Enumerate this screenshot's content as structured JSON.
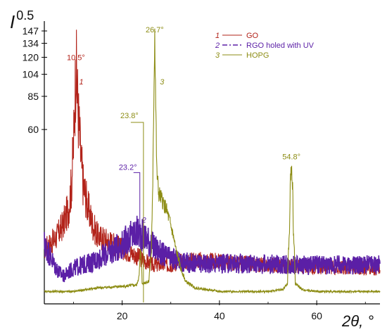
{
  "chart_data": {
    "type": "line",
    "xlabel": "2θ, °",
    "ylabel": "I",
    "ylabel_sup": "0.5",
    "xlim": [
      4,
      73
    ],
    "ylim_sqrt": [
      0,
      147
    ],
    "x_ticks": [
      20,
      40,
      60
    ],
    "x_tick_labels": [
      "20",
      "40",
      "60"
    ],
    "y_ticks": [
      60,
      85,
      104,
      120,
      134,
      147
    ],
    "y_tick_labels": [
      "60",
      "85",
      "104",
      "120",
      "134",
      "147"
    ],
    "legend_position": "top-right",
    "series": [
      {
        "name": "GO",
        "index_label": "1",
        "color": "#b2231a",
        "dash": "solid",
        "points": [
          [
            4,
            6
          ],
          [
            6,
            8
          ],
          [
            7,
            10
          ],
          [
            8,
            13
          ],
          [
            9,
            18
          ],
          [
            9.6,
            28
          ],
          [
            10,
            50
          ],
          [
            10.3,
            85
          ],
          [
            10.5,
            112
          ],
          [
            10.7,
            96
          ],
          [
            11,
            70
          ],
          [
            11.5,
            42
          ],
          [
            12,
            28
          ],
          [
            13,
            18
          ],
          [
            14,
            12
          ],
          [
            15,
            9
          ],
          [
            17,
            8
          ],
          [
            20,
            6
          ],
          [
            22,
            5
          ],
          [
            24,
            4
          ],
          [
            26,
            3
          ],
          [
            28,
            3
          ],
          [
            30,
            3
          ],
          [
            32,
            3.5
          ],
          [
            35,
            3.8
          ],
          [
            40,
            3.5
          ],
          [
            45,
            3.2
          ],
          [
            50,
            3
          ],
          [
            55,
            2.8
          ],
          [
            60,
            2.7
          ],
          [
            65,
            2.6
          ],
          [
            70,
            2.5
          ],
          [
            73,
            2.5
          ]
        ]
      },
      {
        "name": "RGO holed with UV",
        "index_label": "2",
        "color": "#5b1fa6",
        "dash": "dashdot",
        "points": [
          [
            4,
            7
          ],
          [
            5,
            5
          ],
          [
            6,
            3
          ],
          [
            7,
            2
          ],
          [
            8,
            1.5
          ],
          [
            9,
            2
          ],
          [
            10,
            2.5
          ],
          [
            12,
            3
          ],
          [
            14,
            3.5
          ],
          [
            16,
            4.5
          ],
          [
            18,
            5.5
          ],
          [
            20,
            7
          ],
          [
            21,
            8.2
          ],
          [
            22,
            9.2
          ],
          [
            23,
            9.8
          ],
          [
            23.2,
            10
          ],
          [
            24,
            9.6
          ],
          [
            25,
            8.5
          ],
          [
            26,
            7
          ],
          [
            27,
            6
          ],
          [
            28,
            5
          ],
          [
            30,
            4
          ],
          [
            32,
            3.5
          ],
          [
            35,
            3.2
          ],
          [
            40,
            3.2
          ],
          [
            45,
            3.2
          ],
          [
            50,
            3.1
          ],
          [
            55,
            3
          ],
          [
            60,
            3
          ],
          [
            65,
            3
          ],
          [
            70,
            3
          ],
          [
            73,
            3
          ]
        ]
      },
      {
        "name": "HOPG",
        "index_label": "3",
        "color": "#8d8d15",
        "dash": "solid",
        "points": [
          [
            4,
            0.3
          ],
          [
            10,
            0.3
          ],
          [
            15,
            0.5
          ],
          [
            20,
            0.6
          ],
          [
            23.0,
            0.7
          ],
          [
            23.5,
            1.5
          ],
          [
            23.8,
            6
          ],
          [
            24.1,
            0.8
          ],
          [
            25.5,
            1
          ],
          [
            26,
            5
          ],
          [
            26.3,
            25
          ],
          [
            26.5,
            80
          ],
          [
            26.7,
            146
          ],
          [
            26.9,
            80
          ],
          [
            27.1,
            35
          ],
          [
            27.5,
            24
          ],
          [
            28,
            22
          ],
          [
            29,
            18
          ],
          [
            30,
            12
          ],
          [
            31,
            6
          ],
          [
            32,
            2.5
          ],
          [
            33,
            1
          ],
          [
            35,
            0.5
          ],
          [
            40,
            0.3
          ],
          [
            50,
            0.3
          ],
          [
            53,
            0.4
          ],
          [
            54,
            0.8
          ],
          [
            54.4,
            10
          ],
          [
            54.6,
            30
          ],
          [
            54.8,
            36
          ],
          [
            55,
            30
          ],
          [
            55.2,
            10
          ],
          [
            55.6,
            0.8
          ],
          [
            57,
            0.4
          ],
          [
            60,
            0.3
          ],
          [
            70,
            0.3
          ],
          [
            73,
            0.3
          ]
        ]
      }
    ],
    "annotations": [
      {
        "text": "10.5°",
        "series": 0,
        "x": 10.5,
        "y": 112
      },
      {
        "text": "26.7°",
        "series": 2,
        "x": 26.7,
        "y": 147
      },
      {
        "text": "23.8°",
        "series": 2,
        "x": 23.8,
        "y": 65
      },
      {
        "text": "23.2°",
        "series": 1,
        "x": 23.2,
        "y": 34
      },
      {
        "text": "54.8°",
        "series": 2,
        "x": 54.8,
        "y": 38
      },
      {
        "text": "1",
        "series": 0,
        "x": 11.6,
        "y": 95
      },
      {
        "text": "2",
        "series": 1,
        "x": 24.5,
        "y": 13
      },
      {
        "text": "3",
        "series": 2,
        "x": 28.2,
        "y": 95
      }
    ]
  }
}
